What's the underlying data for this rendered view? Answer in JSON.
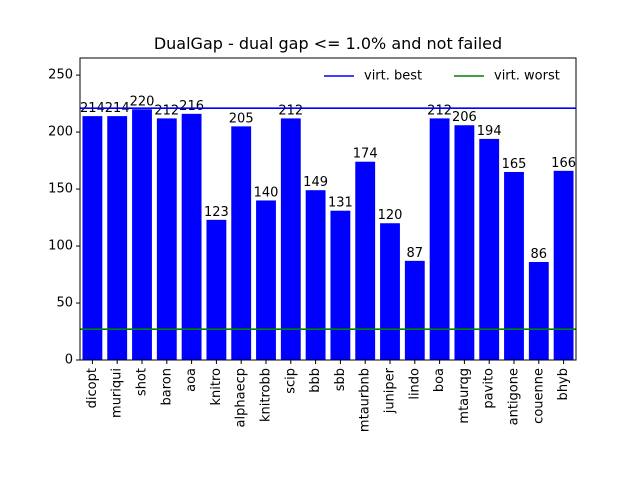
{
  "chart_data": {
    "type": "bar",
    "title": "DualGap - dual gap <= 1.0% and not failed",
    "xlabel": "",
    "ylabel": "",
    "categories": [
      "dicopt",
      "muriqui",
      "shot",
      "baron",
      "aoa",
      "knitro",
      "alphaecp",
      "knitrobb",
      "scip",
      "bbb",
      "sbb",
      "mtaurbnb",
      "juniper",
      "lindo",
      "boa",
      "mtaurqg",
      "pavito",
      "antigone",
      "couenne",
      "bhyb"
    ],
    "values": [
      214,
      214,
      220,
      212,
      216,
      123,
      205,
      140,
      212,
      149,
      131,
      174,
      120,
      87,
      212,
      206,
      194,
      165,
      86,
      166
    ],
    "ylim": [
      0,
      265
    ],
    "yticks": [
      0,
      50,
      100,
      150,
      200,
      250
    ],
    "bar_color": "#0000ff",
    "reference_lines": [
      {
        "name": "virt. best",
        "value": 221,
        "color": "#0000ff"
      },
      {
        "name": "virt. worst",
        "value": 27,
        "color": "#008000"
      }
    ],
    "legend": {
      "placement": "top-right",
      "entries": [
        "virt. best",
        "virt. worst"
      ]
    },
    "grid": false
  }
}
